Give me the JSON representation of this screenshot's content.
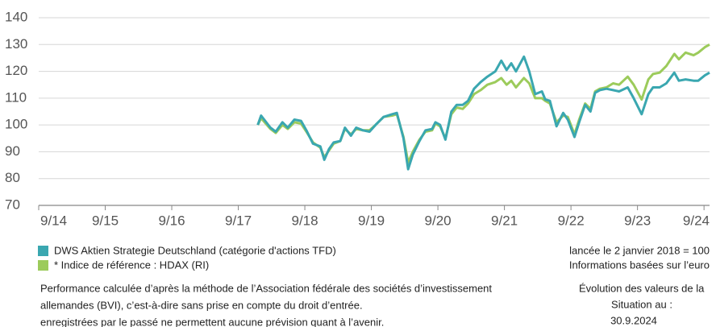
{
  "chart_data": {
    "type": "line",
    "x": [
      2017.96,
      2018.01,
      2018.15,
      2018.23,
      2018.33,
      2018.41,
      2018.51,
      2018.61,
      2018.69,
      2018.79,
      2018.9,
      2018.96,
      2019.03,
      2019.1,
      2019.2,
      2019.27,
      2019.36,
      2019.44,
      2019.54,
      2019.64,
      2019.73,
      2019.85,
      2019.98,
      2020.05,
      2020.15,
      2020.22,
      2020.29,
      2020.39,
      2020.48,
      2020.58,
      2020.63,
      2020.7,
      2020.78,
      2020.87,
      2020.95,
      2021.04,
      2021.12,
      2021.21,
      2021.31,
      2021.41,
      2021.53,
      2021.62,
      2021.7,
      2021.77,
      2021.84,
      2021.96,
      2022.04,
      2022.13,
      2022.23,
      2022.28,
      2022.35,
      2022.45,
      2022.55,
      2022.62,
      2022.72,
      2022.79,
      2022.88,
      2022.96,
      2023.03,
      2023.1,
      2023.2,
      2023.3,
      2023.39,
      2023.52,
      2023.61,
      2023.73,
      2023.83,
      2023.9,
      2024.0,
      2024.1,
      2024.22,
      2024.29,
      2024.39,
      2024.51,
      2024.58,
      2024.68,
      2024.75
    ],
    "series": [
      {
        "name": "DWS Aktien Strategie Deutschland (catégorie d'actions TFD)",
        "color": "#3aa7b0",
        "values": [
          100,
          103.5,
          99,
          97.5,
          101,
          99,
          102,
          101.5,
          98,
          93,
          92,
          87,
          91,
          93.5,
          94,
          99,
          96,
          99,
          98,
          97.5,
          100,
          103,
          104,
          104.5,
          95,
          83.5,
          89,
          94,
          98,
          98.5,
          101,
          100,
          94.5,
          105,
          107.5,
          107.5,
          109,
          113.5,
          116,
          118,
          120,
          124,
          120.5,
          123,
          120,
          125.5,
          120,
          111.5,
          112.5,
          109.5,
          109,
          99.5,
          104.5,
          102,
          95.5,
          101,
          107.5,
          105,
          112,
          113,
          113.5,
          113,
          112.5,
          114,
          110,
          104,
          111.5,
          114,
          114,
          115.5,
          119.5,
          116.5,
          117,
          116.5,
          116.5,
          118.5,
          119.5
        ]
      },
      {
        "name": "* Indice de référence : HDAX (RI)",
        "color": "#9ccb5b",
        "values": [
          100,
          102.5,
          98.5,
          97,
          100,
          98.5,
          101,
          100.5,
          97.5,
          93.5,
          91.5,
          88,
          90.5,
          93,
          94,
          98.5,
          96.5,
          98.5,
          98,
          98,
          100,
          103,
          103.5,
          104,
          95.5,
          86,
          90,
          94.5,
          97.5,
          98,
          100.5,
          99.5,
          95,
          104,
          106.5,
          106,
          108,
          111.5,
          113,
          115,
          116,
          117.5,
          115,
          116.5,
          114,
          117.5,
          115.5,
          110,
          110,
          109,
          108,
          101,
          103.5,
          103,
          96.5,
          102,
          108,
          106,
          112.5,
          113.5,
          114,
          115.5,
          115,
          118,
          115,
          109.5,
          117,
          119,
          119.5,
          122,
          126.5,
          124.5,
          127,
          126,
          127,
          129,
          130
        ]
      }
    ],
    "xlim": [
      2014.667,
      2024.75
    ],
    "xticks": [
      {
        "value": 2014.667,
        "label": "9/14"
      },
      {
        "value": 2015.667,
        "label": "9/15"
      },
      {
        "value": 2016.667,
        "label": "9/16"
      },
      {
        "value": 2017.667,
        "label": "9/17"
      },
      {
        "value": 2018.667,
        "label": "9/18"
      },
      {
        "value": 2019.667,
        "label": "9/19"
      },
      {
        "value": 2020.667,
        "label": "9/20"
      },
      {
        "value": 2021.667,
        "label": "9/21"
      },
      {
        "value": 2022.667,
        "label": "9/22"
      },
      {
        "value": 2023.667,
        "label": "9/23"
      },
      {
        "value": 2024.667,
        "label": "9/24"
      }
    ],
    "ylim": [
      70,
      140
    ],
    "yticks": [
      70,
      80,
      90,
      100,
      110,
      120,
      130,
      140
    ],
    "grid": true,
    "notes": [
      "lancée le 2 janvier 2018 = 100",
      "Informations basées sur l’euro"
    ],
    "footnote": [
      "Performance calculée d’après la méthode de l’Association fédérale des sociétés d’investissement",
      "allemandes (BVI), c’est-à-dire sans prise en compte du droit d’entrée.",
      "enregistrées par le passé ne permettent aucune prévision quant à l’avenir."
    ],
    "side_note": [
      "Évolution des valeurs de la",
      "Situation au :",
      "30.9.2024"
    ]
  }
}
